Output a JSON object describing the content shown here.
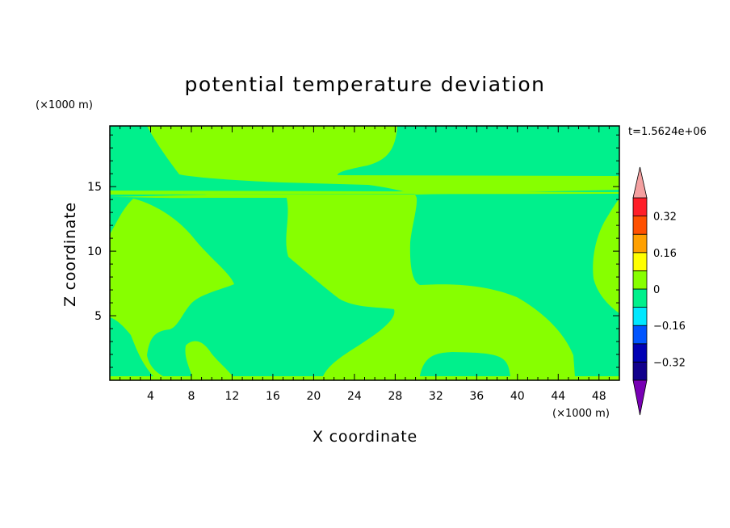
{
  "chart_data": {
    "type": "contour",
    "title": "potential temperature deviation",
    "xlabel": "X coordinate",
    "ylabel": "Z coordinate",
    "x_unit": "(×1000 m)",
    "y_unit": "(×1000 m)",
    "time_label": "t=1.5624e+06",
    "xlim": [
      0,
      50
    ],
    "ylim": [
      0,
      19.7
    ],
    "x_ticks": [
      4,
      8,
      12,
      16,
      20,
      24,
      28,
      32,
      36,
      40,
      44,
      48
    ],
    "y_ticks": [
      5,
      10,
      15
    ],
    "colorbar": {
      "levels": [
        -0.4,
        -0.32,
        -0.24,
        -0.16,
        -0.08,
        0,
        0.08,
        0.16,
        0.24,
        0.32,
        0.4
      ],
      "tick_labels": [
        "0.32",
        "0.16",
        "0",
        "−0.16",
        "−0.32"
      ],
      "tick_values": [
        0.32,
        0.16,
        0,
        -0.16,
        -0.32
      ],
      "colors_low_to_high": [
        "#11008c",
        "#0000b4",
        "#0055ff",
        "#00e8ff",
        "#00f08c",
        "#87ff00",
        "#ffff00",
        "#ffa000",
        "#ff5000",
        "#ff1e28"
      ],
      "under_color": "#7800b4",
      "over_color": "#f4a0a0"
    },
    "field_levels": [
      "-0.08 to 0",
      "0 to 0.08"
    ],
    "field_colors": {
      "-0.08 to 0": "#00f08c",
      "0 to 0.08": "#87ff00"
    }
  }
}
